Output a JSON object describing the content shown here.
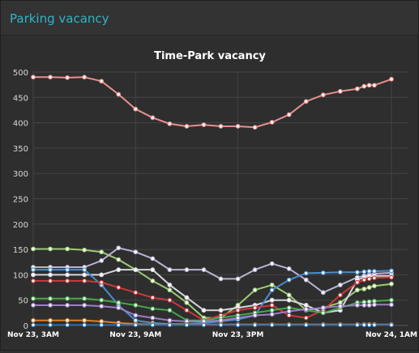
{
  "panel": {
    "title": "Parking vacancy"
  },
  "chart_data": {
    "type": "line",
    "title": "Time-Park vacancy",
    "xlabel": "",
    "ylabel": "",
    "xlim": [
      0,
      22
    ],
    "ylim": [
      0,
      500
    ],
    "yticks": [
      0,
      50,
      100,
      150,
      200,
      250,
      300,
      350,
      400,
      450,
      500
    ],
    "xticks": [
      {
        "x": 0,
        "label": "Nov 23, 3AM"
      },
      {
        "x": 6,
        "label": "Nov 23, 9AM"
      },
      {
        "x": 12,
        "label": "Nov 23, 3PM"
      },
      {
        "x": 21,
        "label": "Nov 24, 1AM"
      }
    ],
    "grid": true,
    "legend": "none",
    "series": [
      {
        "color": "#e8908e",
        "x": [
          0,
          1,
          2,
          3,
          4,
          5,
          6,
          7,
          8,
          9,
          10,
          11,
          12,
          13,
          14,
          15,
          16,
          17,
          18,
          19,
          19.4,
          19.7,
          20,
          21
        ],
        "values": [
          490,
          490,
          489,
          490,
          482,
          456,
          427,
          410,
          398,
          393,
          396,
          393,
          393,
          391,
          401,
          416,
          442,
          455,
          462,
          467,
          472,
          474,
          474,
          486
        ]
      },
      {
        "color": "#9ccc74",
        "x": [
          0,
          1,
          2,
          3,
          4,
          5,
          6,
          7,
          8,
          9,
          10,
          11,
          12,
          13,
          14,
          15,
          16,
          17,
          18,
          19,
          19.4,
          19.7,
          20,
          21
        ],
        "values": [
          151,
          151,
          151,
          149,
          145,
          130,
          110,
          88,
          70,
          45,
          15,
          15,
          40,
          70,
          80,
          60,
          30,
          35,
          45,
          70,
          72,
          75,
          78,
          82
        ]
      },
      {
        "color": "#b9b3d4",
        "x": [
          0,
          1,
          2,
          3,
          4,
          5,
          6,
          7,
          8,
          9,
          10,
          11,
          12,
          13,
          14,
          15,
          16,
          17,
          18,
          19,
          19.4,
          19.7,
          20,
          21
        ],
        "values": [
          115,
          115,
          115,
          115,
          128,
          153,
          145,
          132,
          110,
          110,
          110,
          92,
          92,
          110,
          122,
          112,
          90,
          65,
          80,
          95,
          98,
          100,
          102,
          104
        ]
      },
      {
        "color": "#d6d6e0",
        "x": [
          0,
          1,
          2,
          3,
          4,
          5,
          6,
          7,
          8,
          9,
          10,
          11,
          12,
          13,
          14,
          15,
          16,
          17,
          18,
          19,
          19.4,
          19.7,
          20,
          21
        ],
        "values": [
          100,
          100,
          100,
          100,
          100,
          110,
          110,
          110,
          80,
          55,
          30,
          30,
          35,
          40,
          50,
          50,
          40,
          25,
          30,
          90,
          95,
          97,
          98,
          98
        ]
      },
      {
        "color": "#4a8ed0",
        "x": [
          0,
          1,
          2,
          3,
          4,
          5,
          6,
          7,
          8,
          9,
          10,
          11,
          12,
          13,
          14,
          15,
          16,
          17,
          18,
          19,
          19.4,
          19.7,
          20,
          21
        ],
        "values": [
          110,
          110,
          110,
          110,
          80,
          40,
          10,
          5,
          3,
          3,
          5,
          8,
          12,
          20,
          70,
          90,
          103,
          104,
          105,
          105,
          106,
          107,
          107,
          108
        ]
      },
      {
        "color": "#cc3a3a",
        "x": [
          0,
          1,
          2,
          3,
          4,
          5,
          6,
          7,
          8,
          9,
          10,
          11,
          12,
          13,
          14,
          15,
          16,
          17,
          18,
          19,
          19.4,
          19.7,
          20,
          21
        ],
        "values": [
          88,
          88,
          88,
          88,
          85,
          75,
          65,
          55,
          50,
          30,
          10,
          20,
          30,
          35,
          40,
          20,
          15,
          30,
          60,
          85,
          90,
          92,
          94,
          95
        ]
      },
      {
        "color": "#45a84a",
        "x": [
          0,
          1,
          2,
          3,
          4,
          5,
          6,
          7,
          8,
          9,
          10,
          11,
          12,
          13,
          14,
          15,
          16,
          17,
          18,
          19,
          19.4,
          19.7,
          20,
          21
        ],
        "values": [
          53,
          53,
          53,
          53,
          50,
          45,
          40,
          33,
          30,
          10,
          10,
          15,
          20,
          25,
          30,
          35,
          30,
          25,
          35,
          45,
          46,
          47,
          48,
          50
        ]
      },
      {
        "color": "#9a7fc8",
        "x": [
          0,
          1,
          2,
          3,
          4,
          5,
          6,
          7,
          8,
          9,
          10,
          11,
          12,
          13,
          14,
          15,
          16,
          17,
          18,
          19,
          19.4,
          19.7,
          20,
          21
        ],
        "values": [
          40,
          40,
          40,
          40,
          38,
          35,
          20,
          15,
          10,
          8,
          8,
          10,
          15,
          20,
          22,
          28,
          32,
          35,
          38,
          40,
          40,
          40,
          41,
          41
        ]
      },
      {
        "color": "#e07f2a",
        "x": [
          0,
          1,
          2,
          3,
          4,
          5,
          6,
          7,
          8,
          9,
          10,
          11,
          12,
          13,
          14,
          15,
          16,
          17,
          18,
          19,
          19.4,
          19.7,
          20,
          21
        ],
        "values": [
          10,
          10,
          10,
          10,
          8,
          5,
          3,
          2,
          2,
          2,
          2,
          2,
          2,
          2,
          2,
          2,
          2,
          2,
          2,
          2,
          2,
          2,
          2,
          2
        ]
      },
      {
        "color": "#2f6fb0",
        "x": [
          0,
          1,
          2,
          3,
          4,
          5,
          6,
          7,
          8,
          9,
          10,
          11,
          12,
          13,
          14,
          15,
          16,
          17,
          18,
          19,
          19.4,
          19.7,
          20,
          21
        ],
        "values": [
          1,
          1,
          1,
          1,
          1,
          1,
          1,
          1,
          1,
          1,
          1,
          1,
          1,
          1,
          1,
          1,
          1,
          1,
          1,
          1,
          1,
          1,
          1,
          1
        ]
      }
    ]
  }
}
